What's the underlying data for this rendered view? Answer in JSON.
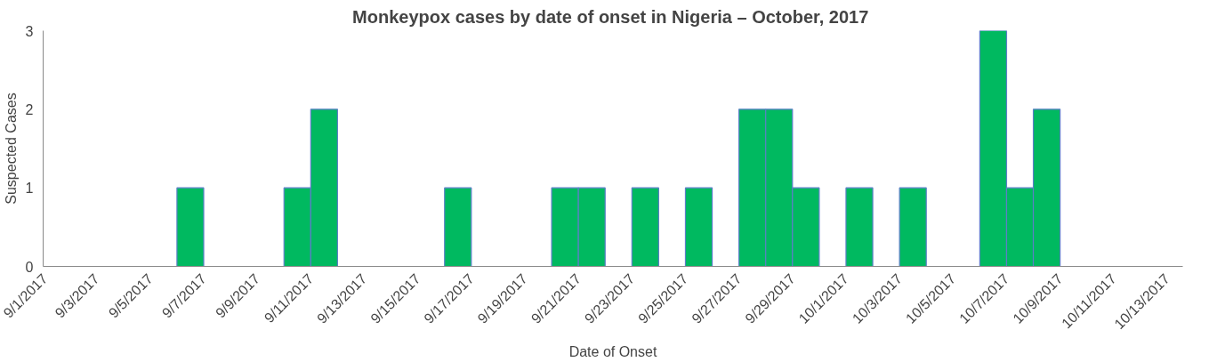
{
  "chart_data": {
    "type": "bar",
    "title": "Monkeypox cases by  date of onset in Nigeria – October, 2017",
    "xlabel": "Date of Onset",
    "ylabel": "Suspected Cases",
    "x": [
      "2017-09-06T12:00",
      "2017-09-10T12:00",
      "2017-09-11T12:00",
      "2017-09-16T12:00",
      "2017-09-20T12:00",
      "2017-09-21T12:00",
      "2017-09-23T12:00",
      "2017-09-25T12:00",
      "2017-09-27T12:00",
      "2017-09-28T12:00",
      "2017-09-29T12:00",
      "2017-10-01T12:00",
      "2017-10-03T12:00",
      "2017-10-06T12:00",
      "2017-10-07T12:00",
      "2017-10-08T12:00"
    ],
    "values": [
      1,
      1,
      2,
      1,
      1,
      1,
      1,
      1,
      2,
      2,
      1,
      1,
      1,
      3,
      1,
      2
    ],
    "color": "#00b960",
    "xlim": [
      "2017-09-01",
      "2017-10-13T14:00"
    ],
    "xticks": [
      {
        "value": "2017-09-01",
        "label": "9/1/2017"
      },
      {
        "value": "2017-09-03",
        "label": "9/3/2017"
      },
      {
        "value": "2017-09-05",
        "label": "9/5/2017"
      },
      {
        "value": "2017-09-07",
        "label": "9/7/2017"
      },
      {
        "value": "2017-09-09",
        "label": "9/9/2017"
      },
      {
        "value": "2017-09-11",
        "label": "9/11/2017"
      },
      {
        "value": "2017-09-13",
        "label": "9/13/2017"
      },
      {
        "value": "2017-09-15",
        "label": "9/15/2017"
      },
      {
        "value": "2017-09-17",
        "label": "9/17/2017"
      },
      {
        "value": "2017-09-19",
        "label": "9/19/2017"
      },
      {
        "value": "2017-09-21",
        "label": "9/21/2017"
      },
      {
        "value": "2017-09-23",
        "label": "9/23/2017"
      },
      {
        "value": "2017-09-25",
        "label": "9/25/2017"
      },
      {
        "value": "2017-09-27",
        "label": "9/27/2017"
      },
      {
        "value": "2017-09-29",
        "label": "9/29/2017"
      },
      {
        "value": "2017-10-01",
        "label": "10/1/2017"
      },
      {
        "value": "2017-10-03",
        "label": "10/3/2017"
      },
      {
        "value": "2017-10-05",
        "label": "10/5/2017"
      },
      {
        "value": "2017-10-07",
        "label": "10/7/2017"
      },
      {
        "value": "2017-10-09",
        "label": "10/9/2017"
      },
      {
        "value": "2017-10-11",
        "label": "10/11/2017"
      },
      {
        "value": "2017-10-13",
        "label": "10/13/2017"
      }
    ],
    "ylim": [
      0,
      3
    ],
    "yticks": [
      0,
      1,
      2,
      3
    ],
    "grid": false
  }
}
